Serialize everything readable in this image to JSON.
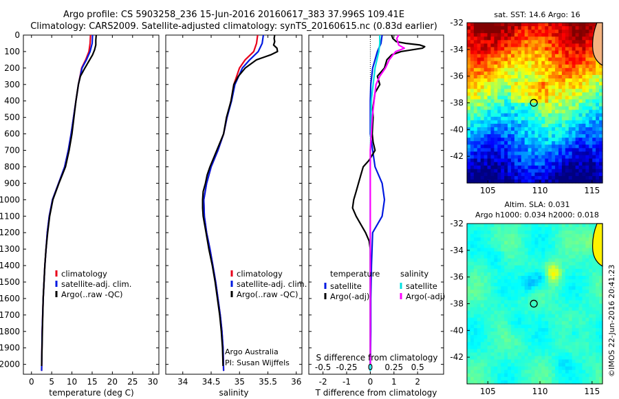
{
  "title": {
    "line1": "Argo profile: CS 5903258_236 15-Jun-2016 20160617_383 37.996S 109.41E",
    "line2": "Climatology: CARS2009. Satellite-adjusted climatology: synTS_20160615.nc (0.83d earlier)"
  },
  "credit": "©IMOS 22-Jun-2016 20:41:23",
  "chart_data": [
    {
      "id": "temperature",
      "type": "line",
      "xlabel": "temperature (deg C)",
      "ylabel": "",
      "xlim": [
        -2,
        31.5
      ],
      "ylim": [
        2060,
        0
      ],
      "xticks": [
        "0",
        "5",
        "10",
        "15",
        "20",
        "25",
        "30"
      ],
      "xtick_values": [
        0,
        5,
        10,
        15,
        20,
        25,
        30
      ],
      "yticks": [
        "0",
        "100",
        "200",
        "300",
        "400",
        "500",
        "600",
        "700",
        "800",
        "900",
        "1000",
        "1100",
        "1200",
        "1300",
        "1400",
        "1500",
        "1600",
        "1700",
        "1800",
        "1900",
        "2000"
      ],
      "ytick_values": [
        0,
        100,
        200,
        300,
        400,
        500,
        600,
        700,
        800,
        900,
        1000,
        1100,
        1200,
        1300,
        1400,
        1500,
        1600,
        1700,
        1800,
        1900,
        2000
      ],
      "legend": [
        "climatology",
        "satellite-adj. clim.",
        "Argo(..raw -QC)"
      ],
      "series": [
        {
          "name": "climatology",
          "color": "#e8001b",
          "depth": [
            0,
            50,
            100,
            150,
            200,
            300,
            400,
            500,
            600,
            700,
            800,
            900,
            1000,
            1100,
            1200,
            1400,
            1600,
            1800,
            2040
          ],
          "values": [
            14.6,
            14.5,
            14.2,
            13.4,
            12.4,
            11.6,
            11.0,
            10.4,
            9.8,
            9.1,
            8.2,
            6.7,
            5.2,
            4.4,
            3.9,
            3.3,
            2.9,
            2.65,
            2.5
          ]
        },
        {
          "name": "satellite-adj. clim.",
          "color": "#0019e0",
          "depth": [
            0,
            50,
            100,
            150,
            200,
            300,
            400,
            500,
            600,
            700,
            800,
            900,
            1000,
            1100,
            1200,
            1400,
            1600,
            1800,
            2040
          ],
          "values": [
            15.1,
            15.0,
            14.5,
            13.6,
            12.5,
            11.6,
            11.0,
            10.4,
            9.8,
            9.1,
            8.2,
            6.7,
            5.2,
            4.4,
            3.9,
            3.3,
            2.9,
            2.65,
            2.5
          ]
        },
        {
          "name": "Argo(..raw -QC)",
          "color": "#000000",
          "depth": [
            0,
            30,
            60,
            90,
            120,
            150,
            200,
            250,
            300,
            400,
            500,
            600,
            700,
            800,
            850,
            900,
            1000,
            1100,
            1200,
            1300,
            1400,
            1500,
            1600,
            1700,
            1800,
            1900,
            2010
          ],
          "values": [
            16.0,
            15.9,
            15.9,
            15.6,
            15.1,
            14.4,
            13.2,
            12.1,
            11.6,
            11.0,
            10.5,
            10.0,
            9.3,
            8.4,
            7.6,
            6.8,
            5.3,
            4.5,
            4.0,
            3.6,
            3.3,
            3.1,
            2.9,
            2.8,
            2.7,
            2.6,
            2.5
          ]
        }
      ]
    },
    {
      "id": "salinity",
      "type": "line",
      "xlabel": "salinity",
      "ylabel": "",
      "xlim": [
        33.7,
        36.1
      ],
      "ylim": [
        2060,
        0
      ],
      "xticks": [
        "34",
        "34.5",
        "35",
        "35.5",
        "36"
      ],
      "xtick_values": [
        34,
        34.5,
        35,
        35.5,
        36
      ],
      "legend": [
        "climatology",
        "satellite-adj. clim.",
        "Argo(..raw -QC)"
      ],
      "annotations": [
        "Argo Australia",
        "PI: Susan Wijffels"
      ],
      "series": [
        {
          "name": "climatology",
          "color": "#e8001b",
          "depth": [
            0,
            50,
            100,
            150,
            200,
            300,
            400,
            500,
            600,
            700,
            800,
            900,
            1000,
            1100,
            1200,
            1300,
            1400,
            1500,
            1600,
            1700,
            1800,
            1900,
            2040
          ],
          "values": [
            35.32,
            35.3,
            35.25,
            35.1,
            35.0,
            34.9,
            34.85,
            34.78,
            34.72,
            34.62,
            34.5,
            34.42,
            34.37,
            34.38,
            34.42,
            34.48,
            34.53,
            34.58,
            34.62,
            34.66,
            34.69,
            34.71,
            34.72
          ]
        },
        {
          "name": "satellite-adj. clim.",
          "color": "#0019e0",
          "depth": [
            0,
            50,
            100,
            150,
            200,
            300,
            400,
            500,
            600,
            700,
            800,
            900,
            1000,
            1100,
            1200,
            1300,
            1400,
            1500,
            1600,
            1700,
            1800,
            1900,
            2040
          ],
          "values": [
            35.42,
            35.4,
            35.33,
            35.18,
            35.05,
            34.92,
            34.86,
            34.78,
            34.72,
            34.62,
            34.5,
            34.42,
            34.37,
            34.38,
            34.42,
            34.48,
            34.53,
            34.58,
            34.62,
            34.66,
            34.69,
            34.71,
            34.72
          ]
        },
        {
          "name": "Argo(..raw -QC)",
          "color": "#000000",
          "depth": [
            0,
            20,
            40,
            60,
            80,
            100,
            120,
            150,
            200,
            250,
            300,
            400,
            500,
            600,
            700,
            800,
            850,
            900,
            950,
            1000,
            1050,
            1100,
            1200,
            1300,
            1400,
            1500,
            1600,
            1700,
            1800,
            1900,
            2010
          ],
          "values": [
            35.62,
            35.61,
            35.62,
            35.6,
            35.66,
            35.67,
            35.55,
            35.3,
            35.1,
            34.98,
            34.9,
            34.85,
            34.77,
            34.72,
            34.6,
            34.48,
            34.43,
            34.4,
            34.36,
            34.35,
            34.35,
            34.36,
            34.41,
            34.46,
            34.52,
            34.57,
            34.61,
            34.65,
            34.68,
            34.7,
            34.71
          ]
        }
      ]
    },
    {
      "id": "differences",
      "type": "line",
      "xlabel": "T difference from climatology",
      "xlabel_top": "S difference from climatology",
      "xlim": [
        -2.6,
        3.1
      ],
      "ylim": [
        2060,
        0
      ],
      "xticks": [
        "-2",
        "-1",
        "0",
        "1",
        "2"
      ],
      "xtick_values": [
        -2,
        -1,
        0,
        1,
        2
      ],
      "sticks": [
        "-0.5",
        "-0.25",
        "0",
        "0.25",
        "0.5"
      ],
      "stick_values": [
        -0.5,
        -0.25,
        0,
        0.25,
        0.5
      ],
      "legend": [
        {
          "group": "temperature",
          "items": [
            "satellite",
            "Argo(-adj)"
          ]
        },
        {
          "group": "salinity",
          "items": [
            "satellite",
            "Argo(-adj)"
          ]
        }
      ],
      "series": [
        {
          "name": "temperature satellite",
          "color": "#0019e0",
          "depth": [
            0,
            50,
            100,
            150,
            200,
            300,
            400,
            500,
            600,
            800,
            900,
            1000,
            1100,
            1200,
            1400,
            1600,
            1800,
            2040
          ],
          "values": [
            0.5,
            0.45,
            0.3,
            0.2,
            0.1,
            0.02,
            0,
            0,
            0,
            0.2,
            0.5,
            0.6,
            0.5,
            0.1,
            0.05,
            0.02,
            0.02,
            0
          ]
        },
        {
          "name": "temperature Argo(-adj)",
          "color": "#000000",
          "depth": [
            0,
            20,
            40,
            50,
            60,
            70,
            80,
            100,
            120,
            150,
            200,
            250,
            300,
            350,
            400,
            450,
            500,
            550,
            600,
            650,
            700,
            760,
            800,
            850,
            900,
            950,
            1000,
            1050,
            1100,
            1150,
            1200,
            1250,
            1300,
            1350,
            1400,
            1500,
            1700,
            2000
          ],
          "values": [
            0.9,
            0.95,
            1.1,
            1.5,
            2.1,
            2.3,
            2.2,
            1.3,
            0.9,
            0.7,
            0.6,
            0.3,
            0.4,
            0.2,
            0.15,
            0.1,
            0.12,
            0.1,
            0.08,
            0.12,
            0.2,
            -0.05,
            -0.3,
            -0.4,
            -0.5,
            -0.6,
            -0.7,
            -0.75,
            -0.6,
            -0.4,
            -0.2,
            -0.05,
            0,
            0,
            0,
            0,
            0,
            0
          ]
        },
        {
          "name": "salinity satellite",
          "color": "#00e0e0",
          "depth": [
            0,
            50,
            100,
            150,
            200,
            400,
            800,
            1200,
            1600,
            2040
          ],
          "values": [
            0.1,
            0.1,
            0.09,
            0.07,
            0.05,
            0.01,
            0,
            0,
            0,
            0
          ]
        },
        {
          "name": "salinity Argo(-adj)",
          "color": "#ff00ff",
          "depth": [
            0,
            20,
            40,
            60,
            80,
            100,
            120,
            150,
            200,
            250,
            300,
            400,
            500,
            600,
            700,
            800,
            900,
            1000,
            1100,
            1200,
            1400,
            1600,
            1800,
            1900,
            2000
          ],
          "values": [
            0.3,
            0.28,
            0.29,
            0.3,
            0.36,
            0.27,
            0.24,
            0.2,
            0.16,
            0.1,
            0.06,
            0.04,
            0.02,
            0.01,
            0,
            0,
            0,
            0,
            0,
            0,
            0,
            0,
            0,
            0,
            0
          ]
        }
      ]
    },
    {
      "id": "sst-map",
      "type": "heatmap",
      "title": "sat. SST: 14.6  Argo: 16",
      "xlim": [
        103,
        116
      ],
      "ylim": [
        -44,
        -32
      ],
      "xticks": [
        "105",
        "110",
        "115"
      ],
      "xtick_values": [
        105,
        110,
        115
      ],
      "yticks": [
        "-32",
        "-34",
        "-36",
        "-38",
        "-40",
        "-42"
      ],
      "ytick_values": [
        -32,
        -34,
        -36,
        -38,
        -40,
        -42
      ],
      "marker": {
        "lon": 109.41,
        "lat": -37.996
      }
    },
    {
      "id": "sla-map",
      "type": "heatmap",
      "title": "Altim. SLA: 0.031",
      "subtitle": "Argo h1000: 0.034 h2000: 0.018",
      "xlim": [
        103,
        116
      ],
      "ylim": [
        -44,
        -32
      ],
      "xticks": [
        "105",
        "110",
        "115"
      ],
      "xtick_values": [
        105,
        110,
        115
      ],
      "yticks": [
        "-32",
        "-34",
        "-36",
        "-38",
        "-40",
        "-42"
      ],
      "ytick_values": [
        -32,
        -34,
        -36,
        -38,
        -40,
        -42
      ],
      "marker": {
        "lon": 109.41,
        "lat": -37.996
      }
    }
  ]
}
